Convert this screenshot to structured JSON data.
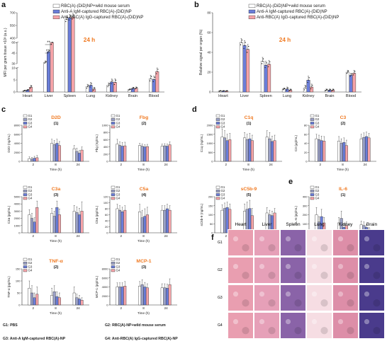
{
  "panel_letters": {
    "a": "a",
    "b": "b",
    "c": "c",
    "d": "d",
    "e": "e",
    "f": "f"
  },
  "colors": {
    "G1": "#ffffff",
    "G2": "#9aa0c6",
    "G3": "#6a7dd9",
    "G4": "#f5a3a8",
    "accent": "#f07a22",
    "edge": "#333333"
  },
  "footnote": {
    "g1": "G1: PBS",
    "g2": "G2: RBC(A)-NP+wild mouse serum",
    "g3": "G3: Anti-A IgM-captured RBC(A)-NP",
    "g4": "G4: Anti-RBC(A) IgG-captured RBC(A)-NP"
  },
  "chart_data": [
    {
      "id": "a",
      "type": "bar",
      "badge": "24 h",
      "ylabel": "MFI per gram tissue ×10³ (a.u.)",
      "categories": [
        "Heart",
        "Liver",
        "Spleen",
        "Lung",
        "Kidney",
        "Brain",
        "Blood"
      ],
      "axis_break": true,
      "y_segments": [
        {
          "range": [
            0,
            10
          ],
          "ticks": [
            "0",
            "5",
            "10"
          ]
        },
        {
          "range": [
            30,
            60
          ],
          "ticks": [
            "30",
            "45",
            "60"
          ]
        },
        {
          "range": [
            400,
            700
          ],
          "ticks": [
            "400",
            "550",
            "700"
          ]
        }
      ],
      "legend": [
        "RBC(A)-(DiD)NP+wild mouse serum",
        "Anti-A IgM-captured RBC(A)-(DiD)NP",
        "Anti-RBC(A) IgG-captured RBC(A)-(DiD)NP"
      ],
      "series": [
        {
          "name": "RBC(A)-(DiD)NP+wild mouse serum",
          "values": [
            0.5,
            32,
            620,
            2.2,
            2.8,
            1.0,
            5.5
          ],
          "errors": [
            0.3,
            2,
            40,
            1.0,
            1.0,
            0.3,
            1.5
          ]
        },
        {
          "name": "Anti-A IgM-captured RBC(A)-(DiD)NP",
          "values": [
            0.8,
            47,
            640,
            2.8,
            4.2,
            1.5,
            5.2
          ],
          "errors": [
            0.3,
            3,
            40,
            1.2,
            1.2,
            0.5,
            1.5
          ]
        },
        {
          "name": "Anti-RBC(A) IgG-captured RBC(A)-(DiD)NP",
          "values": [
            2.0,
            60,
            650,
            1.2,
            4.0,
            1.6,
            8.5
          ],
          "errors": [
            0.8,
            4,
            40,
            0.8,
            1.5,
            0.5,
            1.5
          ]
        }
      ],
      "annotations": [
        "*",
        "**"
      ]
    },
    {
      "id": "b",
      "type": "bar",
      "badge": "24 h",
      "ylabel": "Relative signal per organ (%)",
      "categories": [
        "Heart",
        "Liver",
        "Spleen",
        "Lung",
        "Kidney",
        "Brain",
        "Blood"
      ],
      "ylim": [
        0,
        80
      ],
      "yticks": [
        "0",
        "20",
        "40",
        "60",
        "80"
      ],
      "legend": [
        "RBC(A)-(DiD)NP+wild mouse serum",
        "Anti-A IgM-captured RBC(A)-(DiD)NP",
        "Anti-RBC(A) IgG-captured RBC(A)-(DiD)NP"
      ],
      "series": [
        {
          "name": "RBC(A)-(DiD)NP+wild mouse serum",
          "values": [
            1,
            50,
            31,
            3,
            4,
            2,
            20
          ],
          "errors": [
            0.5,
            4,
            4,
            1,
            3,
            1,
            2
          ]
        },
        {
          "name": "Anti-A IgM-captured RBC(A)-(DiD)NP",
          "values": [
            1,
            47,
            27,
            3,
            12,
            2,
            17
          ],
          "errors": [
            0.5,
            5,
            4,
            2,
            4,
            1,
            2
          ]
        },
        {
          "name": "Anti-RBC(A) IgG-captured RBC(A)-(DiD)NP",
          "values": [
            1,
            43,
            28,
            2,
            5,
            2,
            19
          ],
          "errors": [
            0.5,
            5,
            4,
            1,
            3,
            1,
            3
          ]
        }
      ]
    },
    {
      "id": "c1",
      "type": "bar",
      "title": "D2D",
      "number": "(1)",
      "ylabel": "D2D (ng/mL)",
      "xlabel": "Time (h)",
      "categories": [
        "2",
        "8",
        "24"
      ],
      "ylim": [
        0,
        8000
      ],
      "yticks": [
        "0",
        "2000",
        "4000",
        "6000",
        "8000"
      ],
      "legend": [
        "G1",
        "G2",
        "G3",
        "G4"
      ],
      "series": [
        {
          "name": "G1",
          "values": [
            600,
            4000,
            2800
          ],
          "errors": [
            400,
            900,
            700
          ]
        },
        {
          "name": "G2",
          "values": [
            500,
            3700,
            2200
          ],
          "errors": [
            400,
            900,
            700
          ]
        },
        {
          "name": "G3",
          "values": [
            700,
            4000,
            1800
          ],
          "errors": [
            400,
            900,
            600
          ]
        },
        {
          "name": "G4",
          "values": [
            800,
            3500,
            2500
          ],
          "errors": [
            500,
            900,
            700
          ]
        }
      ]
    },
    {
      "id": "c2",
      "type": "bar",
      "title": "Fbg",
      "number": "(2)",
      "ylabel": "Fbg (ng/mL)",
      "xlabel": "Time (h)",
      "categories": [
        "2",
        "8",
        "24"
      ],
      "ylim": [
        0,
        1000
      ],
      "yticks": [
        "0",
        "200",
        "400",
        "600",
        "800",
        "1000"
      ],
      "legend": [
        "G1",
        "G2",
        "G3",
        "G4"
      ],
      "series": [
        {
          "name": "G1",
          "values": [
            480,
            440,
            420
          ],
          "errors": [
            130,
            60,
            60
          ]
        },
        {
          "name": "G2",
          "values": [
            440,
            420,
            430
          ],
          "errors": [
            100,
            60,
            60
          ]
        },
        {
          "name": "G3",
          "values": [
            420,
            400,
            420
          ],
          "errors": [
            100,
            60,
            60
          ]
        },
        {
          "name": "G4",
          "values": [
            430,
            410,
            460
          ],
          "errors": [
            100,
            60,
            80
          ]
        }
      ]
    },
    {
      "id": "d1",
      "type": "bar",
      "title": "C1q",
      "number": "(1)",
      "ylabel": "C1q (ng/mL)",
      "xlabel": "Time (h)",
      "categories": [
        "2",
        "8",
        "24"
      ],
      "ylim": [
        0,
        2000
      ],
      "yticks": [
        "0",
        "500",
        "1000",
        "1500",
        "2000"
      ],
      "legend": [
        "G1",
        "G2",
        "G3",
        "G4"
      ],
      "series": [
        {
          "name": "G1",
          "values": [
            1350,
            1300,
            1350
          ],
          "errors": [
            450,
            300,
            350
          ]
        },
        {
          "name": "G2",
          "values": [
            1300,
            1200,
            1250
          ],
          "errors": [
            400,
            300,
            350
          ]
        },
        {
          "name": "G3",
          "values": [
            1150,
            1250,
            1100
          ],
          "errors": [
            350,
            300,
            300
          ]
        },
        {
          "name": "G4",
          "values": [
            1200,
            1150,
            1150
          ],
          "errors": [
            350,
            300,
            300
          ]
        }
      ]
    },
    {
      "id": "d2",
      "type": "bar",
      "title": "C3",
      "number": "(2)",
      "ylabel": "C3 (μg/mL)",
      "xlabel": "Time (h)",
      "categories": [
        "2",
        "8",
        "24"
      ],
      "ylim": [
        0,
        80
      ],
      "yticks": [
        "0",
        "20",
        "40",
        "60",
        "80"
      ],
      "legend": [
        "G1",
        "G2",
        "G3",
        "G4"
      ],
      "series": [
        {
          "name": "G1",
          "values": [
            50,
            45,
            50
          ],
          "errors": [
            10,
            10,
            10
          ]
        },
        {
          "name": "G2",
          "values": [
            48,
            40,
            53
          ],
          "errors": [
            10,
            10,
            10
          ]
        },
        {
          "name": "G3",
          "values": [
            46,
            42,
            55
          ],
          "errors": [
            10,
            10,
            10
          ]
        },
        {
          "name": "G4",
          "values": [
            45,
            35,
            52
          ],
          "errors": [
            10,
            12,
            10
          ]
        }
      ]
    },
    {
      "id": "c3",
      "type": "bar",
      "title": "C3a",
      "number": "(3)",
      "ylabel": "C3a (pg/mL)",
      "xlabel": "Time (h)",
      "categories": [
        "2",
        "8",
        "24"
      ],
      "ylim": [
        0,
        5000
      ],
      "yticks": [
        "0",
        "1000",
        "2000",
        "3000",
        "4000",
        "5000"
      ],
      "legend": [
        "G1",
        "G2",
        "G3",
        "G4"
      ],
      "series": [
        {
          "name": "G1",
          "values": [
            2500,
            2700,
            3000
          ],
          "errors": [
            700,
            700,
            800
          ]
        },
        {
          "name": "G2",
          "values": [
            2000,
            2300,
            2800
          ],
          "errors": [
            700,
            700,
            800
          ]
        },
        {
          "name": "G3",
          "values": [
            1500,
            3500,
            2500
          ],
          "errors": [
            600,
            900,
            900
          ]
        },
        {
          "name": "G4",
          "values": [
            3500,
            2500,
            3000
          ],
          "errors": [
            900,
            800,
            1300
          ]
        }
      ]
    },
    {
      "id": "c4",
      "type": "bar",
      "title": "C5a",
      "number": "(4)",
      "ylabel": "C5a (pg/mL)",
      "xlabel": "Time (h)",
      "categories": [
        "2",
        "8",
        "24"
      ],
      "ylim": [
        0,
        120
      ],
      "yticks": [
        "0",
        "20",
        "40",
        "60",
        "80",
        "100",
        "120"
      ],
      "legend": [
        "G1",
        "G2",
        "G3",
        "G4"
      ],
      "series": [
        {
          "name": "G1",
          "values": [
            80,
            70,
            75
          ],
          "errors": [
            15,
            25,
            15
          ]
        },
        {
          "name": "G2",
          "values": [
            75,
            50,
            75
          ],
          "errors": [
            15,
            25,
            15
          ]
        },
        {
          "name": "G3",
          "values": [
            70,
            55,
            80
          ],
          "errors": [
            15,
            25,
            15
          ]
        },
        {
          "name": "G4",
          "values": [
            75,
            60,
            75
          ],
          "errors": [
            15,
            25,
            15
          ]
        }
      ]
    },
    {
      "id": "d3",
      "type": "bar",
      "title": "sC5b-9",
      "number": "(5)",
      "ylabel": "sC5b-9 (ng/mL)",
      "xlabel": "Time (h)",
      "categories": [
        "2",
        "8",
        "24"
      ],
      "ylim": [
        0,
        200
      ],
      "yticks": [
        "0",
        "50",
        "100",
        "150",
        "200"
      ],
      "legend": [
        "G1",
        "G2",
        "G3",
        "G4"
      ],
      "series": [
        {
          "name": "G1",
          "values": [
            125,
            120,
            110
          ],
          "errors": [
            30,
            40,
            30
          ]
        },
        {
          "name": "G2",
          "values": [
            135,
            130,
            100
          ],
          "errors": [
            30,
            40,
            25
          ]
        },
        {
          "name": "G3",
          "values": [
            140,
            135,
            95
          ],
          "errors": [
            30,
            45,
            25
          ]
        },
        {
          "name": "G4",
          "values": [
            130,
            95,
            110
          ],
          "errors": [
            30,
            40,
            25
          ]
        }
      ]
    },
    {
      "id": "e1",
      "type": "bar",
      "title": "IL-6",
      "number": "(1)",
      "ylabel": "IL-6 (pg/mL)",
      "xlabel": "Time (h)",
      "categories": [
        "2",
        "8",
        "24"
      ],
      "ylim": [
        0,
        400
      ],
      "yticks": [
        "0",
        "100",
        "200",
        "300",
        "400"
      ],
      "legend": [
        "G1",
        "G2",
        "G3",
        "G4"
      ],
      "series": [
        {
          "name": "G1",
          "values": [
            200,
            110,
            90
          ],
          "errors": [
            80,
            60,
            40
          ]
        },
        {
          "name": "G2",
          "values": [
            120,
            160,
            80
          ],
          "errors": [
            60,
            80,
            40
          ]
        },
        {
          "name": "G3",
          "values": [
            180,
            60,
            60
          ],
          "errors": [
            80,
            40,
            30
          ]
        },
        {
          "name": "G4",
          "values": [
            110,
            80,
            40
          ],
          "errors": [
            60,
            40,
            20
          ]
        }
      ]
    },
    {
      "id": "c5",
      "type": "bar",
      "title": "TNF-α",
      "number": "(2)",
      "ylabel": "TNF-α (pg/mL)",
      "xlabel": "Time (h)",
      "categories": [
        "2",
        "8",
        "24"
      ],
      "ylim": [
        0,
        150
      ],
      "yticks": [
        "0",
        "50",
        "100",
        "150"
      ],
      "legend": [
        "G1",
        "G2",
        "G3",
        "G4"
      ],
      "series": [
        {
          "name": "G1",
          "values": [
            70,
            40,
            50
          ],
          "errors": [
            30,
            30,
            25
          ]
        },
        {
          "name": "G2",
          "values": [
            50,
            55,
            30
          ],
          "errors": [
            30,
            25,
            15
          ]
        },
        {
          "name": "G3",
          "values": [
            30,
            35,
            25
          ],
          "errors": [
            20,
            20,
            15
          ]
        },
        {
          "name": "G4",
          "values": [
            45,
            30,
            20
          ],
          "errors": [
            30,
            20,
            10
          ]
        }
      ]
    },
    {
      "id": "c6",
      "type": "bar",
      "title": "MCP-1",
      "number": "(3)",
      "ylabel": "MCP-1 (pg/mL)",
      "xlabel": "Time (h)",
      "categories": [
        "2",
        "8",
        "24"
      ],
      "ylim": [
        0,
        8000
      ],
      "yticks": [
        "0",
        "2000",
        "4000",
        "6000",
        "8000"
      ],
      "legend": [
        "G1",
        "G2",
        "G3",
        "G4"
      ],
      "series": [
        {
          "name": "G1",
          "values": [
            4000,
            4200,
            3800
          ],
          "errors": [
            900,
            1000,
            900
          ]
        },
        {
          "name": "G2",
          "values": [
            4000,
            4500,
            3800
          ],
          "errors": [
            900,
            1100,
            900
          ]
        },
        {
          "name": "G3",
          "values": [
            4000,
            4000,
            3700
          ],
          "errors": [
            900,
            1000,
            900
          ]
        },
        {
          "name": "G4",
          "values": [
            4200,
            3800,
            4500
          ],
          "errors": [
            1000,
            900,
            1300
          ]
        }
      ]
    }
  ],
  "histology": {
    "columns": [
      "Heart",
      "Liver",
      "Spleen",
      "Lung",
      "Kidney",
      "Brain"
    ],
    "rows": [
      "G1",
      "G2",
      "G3",
      "G4"
    ],
    "tissue_colors": [
      "#e99eb0",
      "#e6a0b8",
      "#8a63a8",
      "#f6dde3",
      "#dd8ea8",
      "#4a3b8c"
    ]
  }
}
